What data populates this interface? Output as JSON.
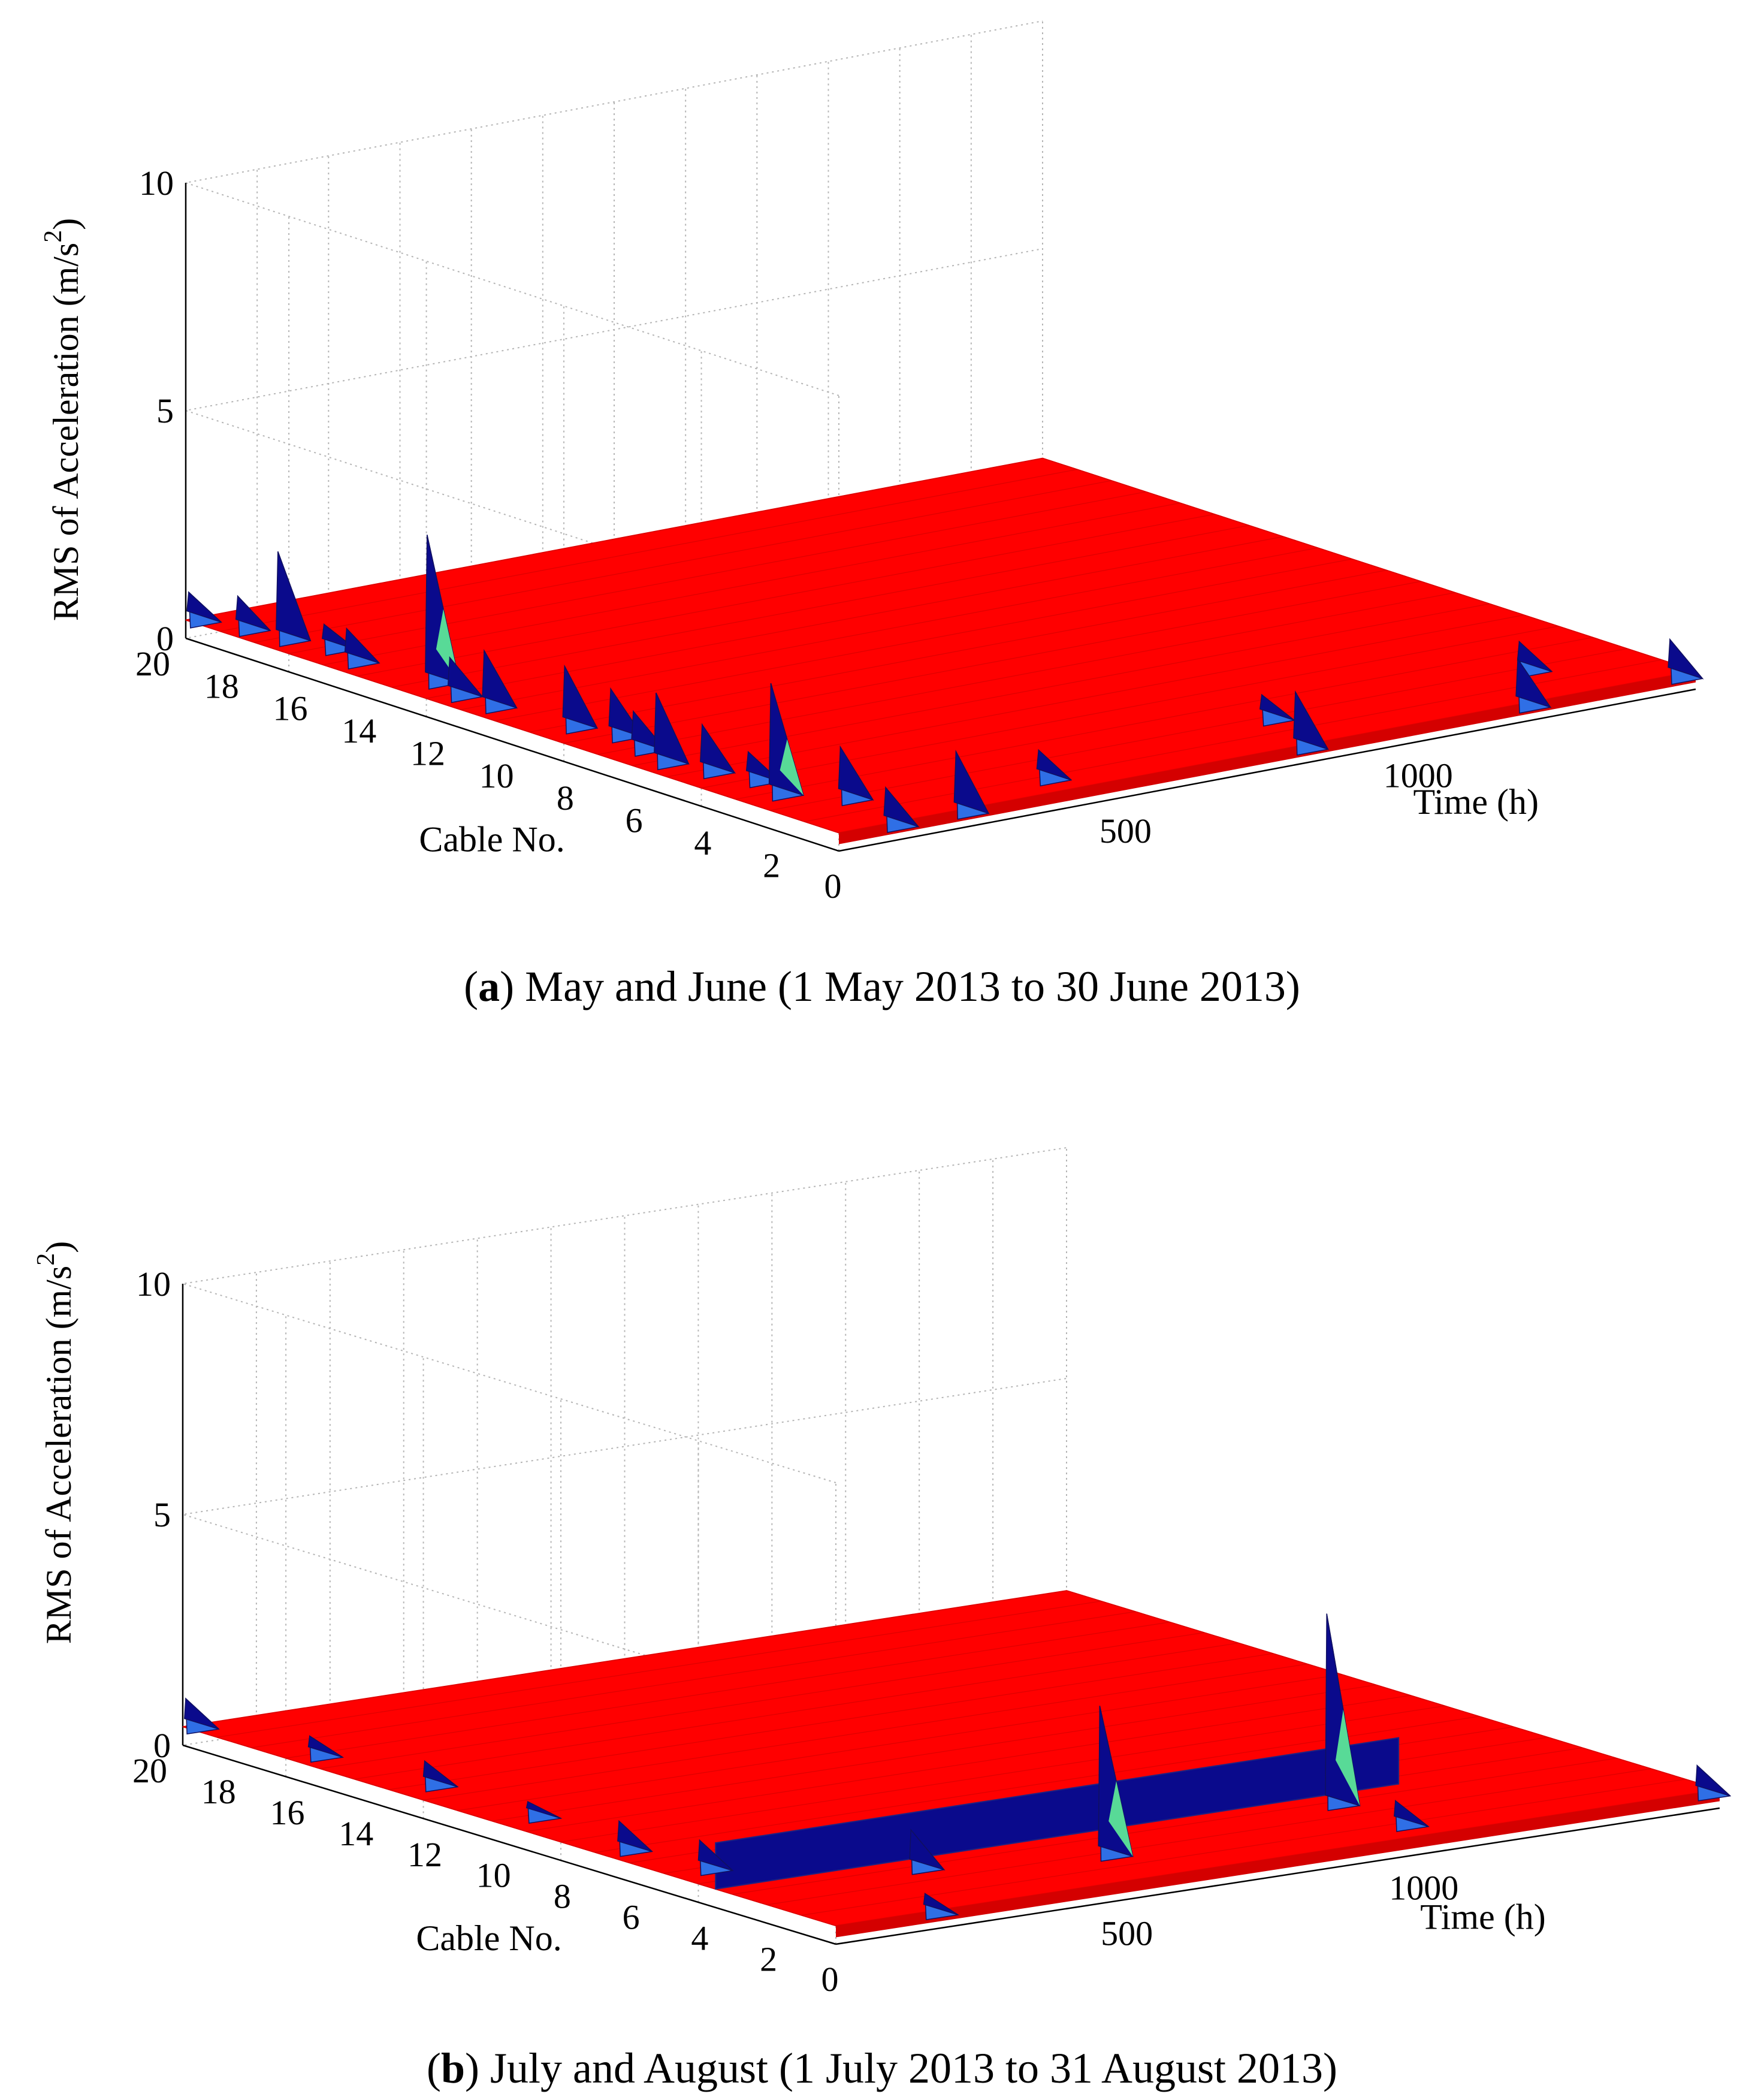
{
  "chart_data": [
    {
      "type": "surface3d",
      "panel_letter": "a",
      "caption_rest": ") May and June (1 May 2013 to 30 June 2013)",
      "zlabel": "RMS of Acceleration (m/s",
      "zlabel_sup": "2",
      "zlabel_close": ")",
      "xlabel": "Cable No.",
      "ylabel": "Time (h)",
      "cable_ticks": [
        "20",
        "18",
        "16",
        "14",
        "12",
        "10",
        "8",
        "6",
        "4",
        "2"
      ],
      "time_ticks": [
        "0",
        "500",
        "1000"
      ],
      "rms_ticks": [
        "0",
        "5",
        "10"
      ],
      "cable_range": [
        1,
        20
      ],
      "time_range": [
        0,
        1464
      ],
      "rms_range": [
        0,
        10
      ],
      "surface_level": 0.4,
      "colors": {
        "surface": "#ff0000",
        "peak": "#0a0a8c",
        "peak_light": "#2f6fe6",
        "highlight": "#66ff99"
      },
      "peaks": [
        {
          "cable": 20,
          "time": 5,
          "rms": 1.0
        },
        {
          "cable": 19,
          "time": 30,
          "rms": 1.1
        },
        {
          "cable": 18,
          "time": 40,
          "rms": 2.3
        },
        {
          "cable": 17,
          "time": 60,
          "rms": 0.9
        },
        {
          "cable": 16,
          "time": 40,
          "rms": 1.1
        },
        {
          "cable": 14,
          "time": 60,
          "rms": 3.6
        },
        {
          "cable": 13,
          "time": 40,
          "rms": 1.2
        },
        {
          "cable": 12,
          "time": 40,
          "rms": 1.6
        },
        {
          "cable": 10,
          "time": 60,
          "rms": 1.7
        },
        {
          "cable": 9,
          "time": 80,
          "rms": 1.4
        },
        {
          "cable": 8,
          "time": 60,
          "rms": 1.2
        },
        {
          "cable": 7,
          "time": 40,
          "rms": 1.9
        },
        {
          "cable": 6,
          "time": 60,
          "rms": 1.4
        },
        {
          "cable": 5,
          "time": 80,
          "rms": 1.0
        },
        {
          "cable": 4,
          "time": 60,
          "rms": 2.8
        },
        {
          "cable": 3,
          "time": 120,
          "rms": 1.5
        },
        {
          "cable": 1,
          "time": 1420,
          "rms": 1.2
        },
        {
          "cable": 1,
          "time": 1160,
          "rms": 1.4
        },
        {
          "cable": 1,
          "time": 780,
          "rms": 1.6
        },
        {
          "cable": 1,
          "time": 200,
          "rms": 1.7
        },
        {
          "cable": 1,
          "time": 80,
          "rms": 1.2
        },
        {
          "cable": 3,
          "time": 1280,
          "rms": 1.0
        },
        {
          "cable": 3,
          "time": 840,
          "rms": 0.9
        },
        {
          "cable": 2,
          "time": 400,
          "rms": 1.0
        }
      ]
    },
    {
      "type": "surface3d",
      "panel_letter": "b",
      "caption_rest": ") July and August (1 July 2013 to 31 August 2013)",
      "zlabel": "RMS of Acceleration (m/s",
      "zlabel_sup": "2",
      "zlabel_close": ")",
      "xlabel": "Cable No.",
      "ylabel": "Time (h)",
      "cable_ticks": [
        "20",
        "18",
        "16",
        "14",
        "12",
        "10",
        "8",
        "6",
        "4",
        "2"
      ],
      "time_ticks": [
        "0",
        "500",
        "1000"
      ],
      "rms_ticks": [
        "0",
        "5",
        "10"
      ],
      "cable_range": [
        1,
        20
      ],
      "time_range": [
        0,
        1488
      ],
      "rms_range": [
        0,
        10
      ],
      "surface_level": 0.4,
      "colors": {
        "surface": "#ff0000",
        "peak": "#0a0a8c",
        "peak_light": "#2f6fe6",
        "highlight": "#66ff99"
      },
      "ridge": {
        "cable": 4,
        "time_start": 0,
        "time_end": 1150,
        "rms": 1.4
      },
      "peaks": [
        {
          "cable": 20,
          "time": 5,
          "rms": 1.0
        },
        {
          "cable": 17,
          "time": 40,
          "rms": 0.8
        },
        {
          "cable": 14,
          "time": 60,
          "rms": 0.9
        },
        {
          "cable": 11,
          "time": 60,
          "rms": 0.7
        },
        {
          "cable": 8,
          "time": 40,
          "rms": 1.0
        },
        {
          "cable": 6,
          "time": 60,
          "rms": 1.0
        },
        {
          "cable": 4,
          "time": 1000,
          "rms": 4.5
        },
        {
          "cable": 4,
          "time": 300,
          "rms": 1.2
        },
        {
          "cable": 3,
          "time": 560,
          "rms": 3.6
        },
        {
          "cable": 2,
          "time": 1000,
          "rms": 0.9
        },
        {
          "cable": 1,
          "time": 1450,
          "rms": 1.0
        },
        {
          "cable": 1,
          "time": 150,
          "rms": 0.8
        }
      ]
    }
  ]
}
